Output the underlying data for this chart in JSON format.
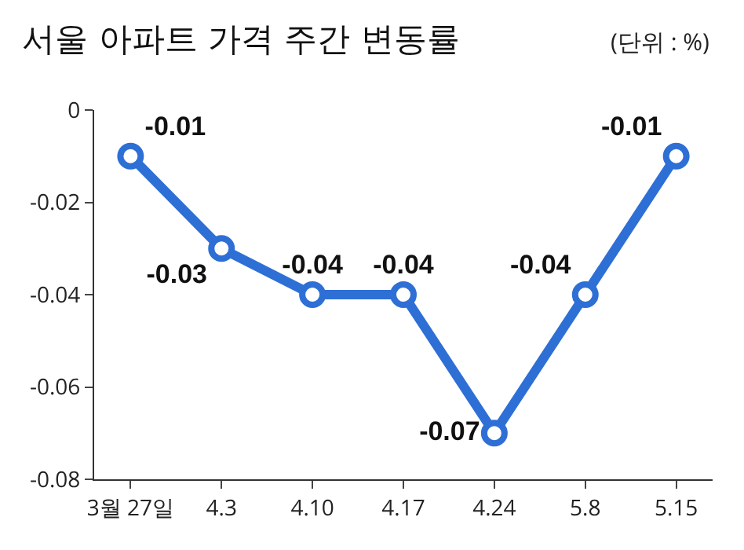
{
  "chart_data": {
    "type": "line",
    "title": "서울 아파트 가격 주간 변동률",
    "subtitle": "(단위 : %)",
    "categories": [
      "3월 27일",
      "4.3",
      "4.10",
      "4.17",
      "4.24",
      "5.8",
      "5.15"
    ],
    "series": [
      {
        "color": "#2e6fd6",
        "values": [
          -0.01,
          -0.03,
          -0.04,
          -0.04,
          -0.07,
          -0.04,
          -0.01
        ]
      }
    ],
    "ylim": [
      -0.08,
      0
    ],
    "yticks": [
      {
        "value": -0.08,
        "label": "-0.08"
      },
      {
        "value": -0.06,
        "label": "-0.06"
      },
      {
        "value": -0.04,
        "label": "-0.04"
      },
      {
        "value": -0.02,
        "label": "-0.02"
      },
      0
    ],
    "data_labels": true,
    "marker": "circle",
    "line_style": "solid"
  }
}
